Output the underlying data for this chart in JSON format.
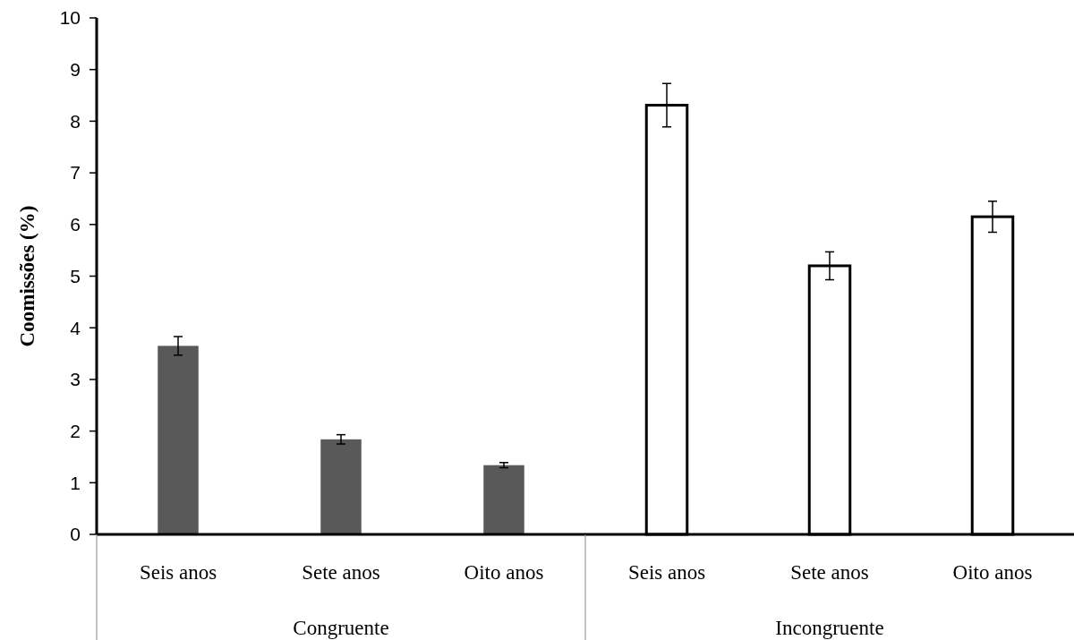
{
  "chart_data": {
    "type": "bar",
    "ylabel": "Coomissões (%)",
    "categories": [
      "Seis anos",
      "Sete anos",
      "Oito anos",
      "Seis anos",
      "Sete anos",
      "Oito anos"
    ],
    "values": [
      3.65,
      1.84,
      1.34,
      8.31,
      5.2,
      6.15
    ],
    "errors": [
      0.18,
      0.09,
      0.05,
      0.42,
      0.27,
      0.3
    ],
    "colors": [
      "#595959",
      "#595959",
      "#595959",
      "#ffffff",
      "#ffffff",
      "#ffffff"
    ],
    "annotations": [
      "Congruente",
      "Incongruente"
    ],
    "ylim": [
      0,
      10
    ],
    "yticks": [
      0,
      1,
      2,
      3,
      4,
      5,
      6,
      7,
      8,
      9,
      10
    ],
    "grid": false
  }
}
